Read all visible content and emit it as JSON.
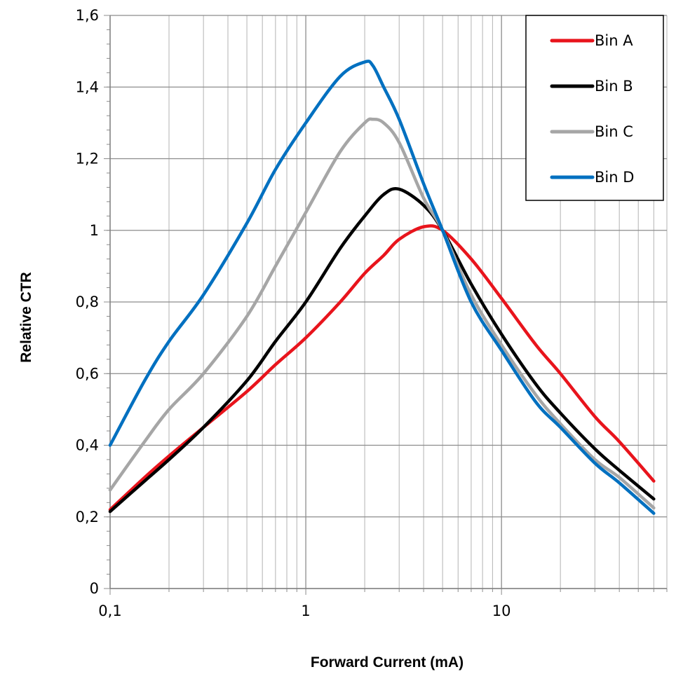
{
  "chart_data": {
    "type": "line",
    "title": "",
    "xlabel": "Forward Current (mA)",
    "ylabel": "Relative CTR",
    "x_scale": "log",
    "xlim": [
      0.1,
      70
    ],
    "ylim": [
      0,
      1.6
    ],
    "x_ticks": [
      0.1,
      1,
      10
    ],
    "x_tick_labels": [
      "0,1",
      "1",
      "10"
    ],
    "y_ticks": [
      0,
      0.2,
      0.4,
      0.6,
      0.8,
      1,
      1.2,
      1.4,
      1.6
    ],
    "y_tick_labels": [
      "0",
      "0,2",
      "0,4",
      "0,6",
      "0,8",
      "1",
      "1,2",
      "1,4",
      "1,6"
    ],
    "grid": true,
    "legend_position": "top-right",
    "series": [
      {
        "name": "Bin A",
        "color": "#e8141c",
        "x": [
          0.1,
          0.15,
          0.2,
          0.3,
          0.5,
          0.7,
          1,
          1.5,
          2,
          2.5,
          3,
          4,
          5,
          7,
          10,
          15,
          20,
          30,
          40,
          60
        ],
        "y": [
          0.22,
          0.31,
          0.37,
          0.45,
          0.55,
          0.625,
          0.7,
          0.8,
          0.88,
          0.93,
          0.975,
          1.01,
          1.0,
          0.92,
          0.81,
          0.68,
          0.6,
          0.48,
          0.41,
          0.3
        ]
      },
      {
        "name": "Bin B",
        "color": "#000000",
        "x": [
          0.1,
          0.15,
          0.2,
          0.3,
          0.5,
          0.7,
          1,
          1.5,
          2,
          2.5,
          3,
          4,
          5,
          7,
          10,
          15,
          20,
          30,
          40,
          60
        ],
        "y": [
          0.215,
          0.3,
          0.36,
          0.45,
          0.58,
          0.69,
          0.8,
          0.95,
          1.04,
          1.1,
          1.115,
          1.07,
          1.0,
          0.85,
          0.71,
          0.57,
          0.49,
          0.39,
          0.33,
          0.25
        ]
      },
      {
        "name": "Bin C",
        "color": "#a6a6a6",
        "x": [
          0.1,
          0.15,
          0.2,
          0.3,
          0.5,
          0.7,
          1,
          1.5,
          2,
          2.2,
          2.5,
          3,
          4,
          5,
          7,
          10,
          15,
          20,
          30,
          40,
          60
        ],
        "y": [
          0.275,
          0.41,
          0.5,
          0.6,
          0.76,
          0.9,
          1.05,
          1.22,
          1.3,
          1.31,
          1.3,
          1.245,
          1.09,
          1.0,
          0.82,
          0.68,
          0.54,
          0.46,
          0.36,
          0.31,
          0.225
        ]
      },
      {
        "name": "Bin D",
        "color": "#0070c0",
        "x": [
          0.1,
          0.15,
          0.2,
          0.3,
          0.5,
          0.7,
          1,
          1.5,
          2,
          2.2,
          2.5,
          3,
          4,
          5,
          7,
          10,
          15,
          20,
          30,
          40,
          60
        ],
        "y": [
          0.4,
          0.58,
          0.69,
          0.82,
          1.02,
          1.17,
          1.3,
          1.43,
          1.47,
          1.46,
          1.4,
          1.31,
          1.13,
          1.0,
          0.8,
          0.665,
          0.52,
          0.45,
          0.35,
          0.295,
          0.21
        ]
      }
    ]
  }
}
